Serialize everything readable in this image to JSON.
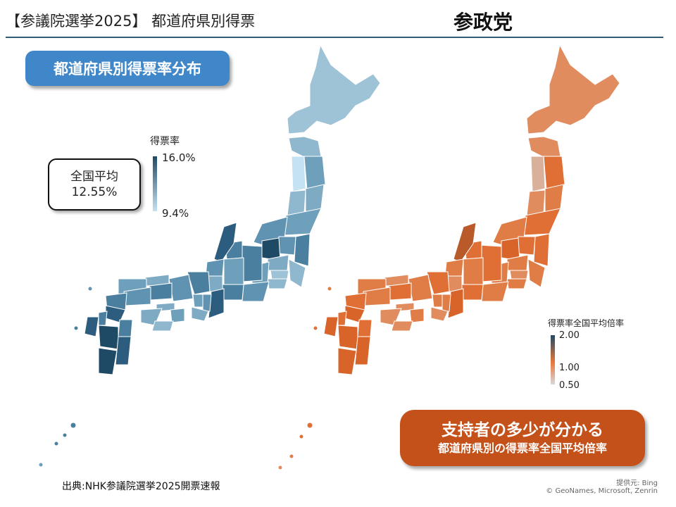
{
  "header": {
    "title": "【参議院選挙2025】 都道府県別得票",
    "party": "参政党"
  },
  "left_panel": {
    "label": "都道府県別得票率分布",
    "national_average_label": "全国平均",
    "national_average_value": "12.55%",
    "legend_title": "得票率",
    "legend_max": "16.0%",
    "legend_min": "9.4%",
    "colors": {
      "high": "#1f4a66",
      "low": "#c5e2f3"
    }
  },
  "right_panel": {
    "legend_title": "得票率全国平均倍率",
    "legend_ticks": [
      "2.00",
      "1.00",
      "0.50"
    ],
    "callout_line1": "支持者の多少が分かる",
    "callout_line2": "都道府県別の得票率全国平均倍率",
    "colors": {
      "high": "#1f4a66",
      "mid": "#e8773a",
      "low": "#d9d9d9"
    }
  },
  "footer": {
    "source": "出典:NHK参議院選挙2025開票速報",
    "credit_line1": "提供元: Bing",
    "credit_line2": "© GeoNames, Microsoft, Zenrin"
  }
}
